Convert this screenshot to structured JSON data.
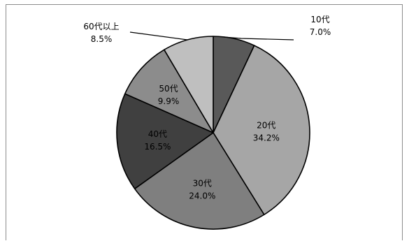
{
  "chart_data": {
    "type": "pie",
    "title": "",
    "start_angle_deg": 0,
    "direction": "clockwise",
    "slices": [
      {
        "label": "10代",
        "value": 7.0,
        "value_label": "7.0%",
        "color": "#595959"
      },
      {
        "label": "20代",
        "value": 34.2,
        "value_label": "34.2%",
        "color": "#a6a6a6"
      },
      {
        "label": "30代",
        "value": 24.0,
        "value_label": "24.0%",
        "color": "#7f7f7f"
      },
      {
        "label": "40代",
        "value": 16.5,
        "value_label": "16.5%",
        "color": "#404040"
      },
      {
        "label": "50代",
        "value": 9.9,
        "value_label": "9.9%",
        "color": "#8c8c8c"
      },
      {
        "label": "60代以上",
        "value": 8.5,
        "value_label": "8.5%",
        "color": "#bfbfbf"
      }
    ]
  }
}
